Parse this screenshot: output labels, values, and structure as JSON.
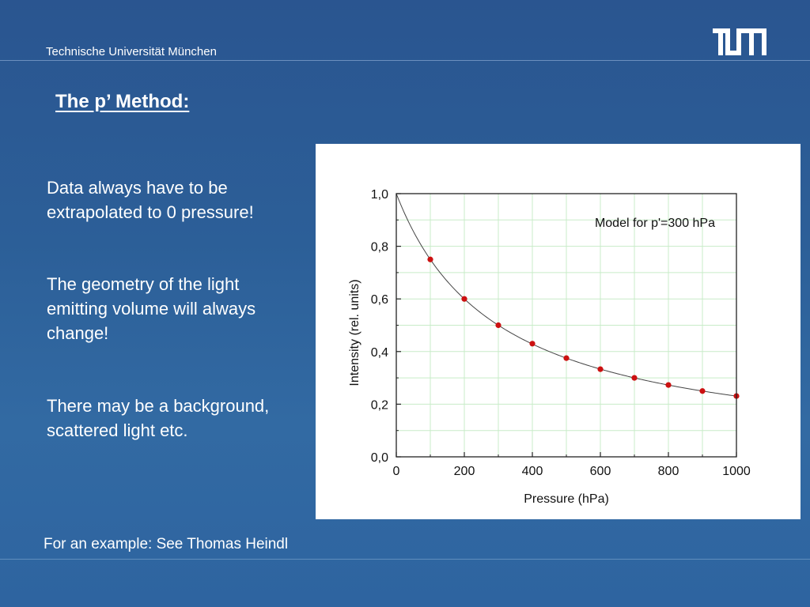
{
  "header": {
    "institution": "Technische Universität München",
    "logo_text": "TUM"
  },
  "slide": {
    "title": "The p’ Method:",
    "bullets": [
      "Data always have to be extrapolated to 0 pressure!",
      "The geometry of the light emitting volume will always change!",
      "There may be a background, scattered light etc."
    ],
    "footer": "For an example: See Thomas Heindl"
  },
  "colors": {
    "background": "#2c5f98",
    "points": "#cc1111",
    "curve": "#444444",
    "grid": "#c8ecc8"
  },
  "chart_data": {
    "type": "scatter",
    "annotation": "Model for p'=300 hPa",
    "xlabel": "Pressure (hPa)",
    "ylabel": "Intensity (rel. units)",
    "xlim": [
      0,
      1000
    ],
    "ylim": [
      0,
      1
    ],
    "x_ticks": [
      0,
      200,
      400,
      600,
      800,
      1000
    ],
    "x_tick_labels": [
      "0",
      "200",
      "400",
      "600",
      "800",
      "1000"
    ],
    "y_ticks": [
      0,
      0.2,
      0.4,
      0.6,
      0.8,
      1.0
    ],
    "y_tick_labels": [
      "0,0",
      "0,2",
      "0,4",
      "0,6",
      "0,8",
      "1,0"
    ],
    "grid": true,
    "model_p_prime": 300,
    "points": {
      "x": [
        100,
        200,
        300,
        400,
        500,
        600,
        700,
        800,
        900,
        1000
      ],
      "y": [
        0.75,
        0.6,
        0.5,
        0.43,
        0.375,
        0.333,
        0.3,
        0.273,
        0.25,
        0.231
      ]
    }
  }
}
